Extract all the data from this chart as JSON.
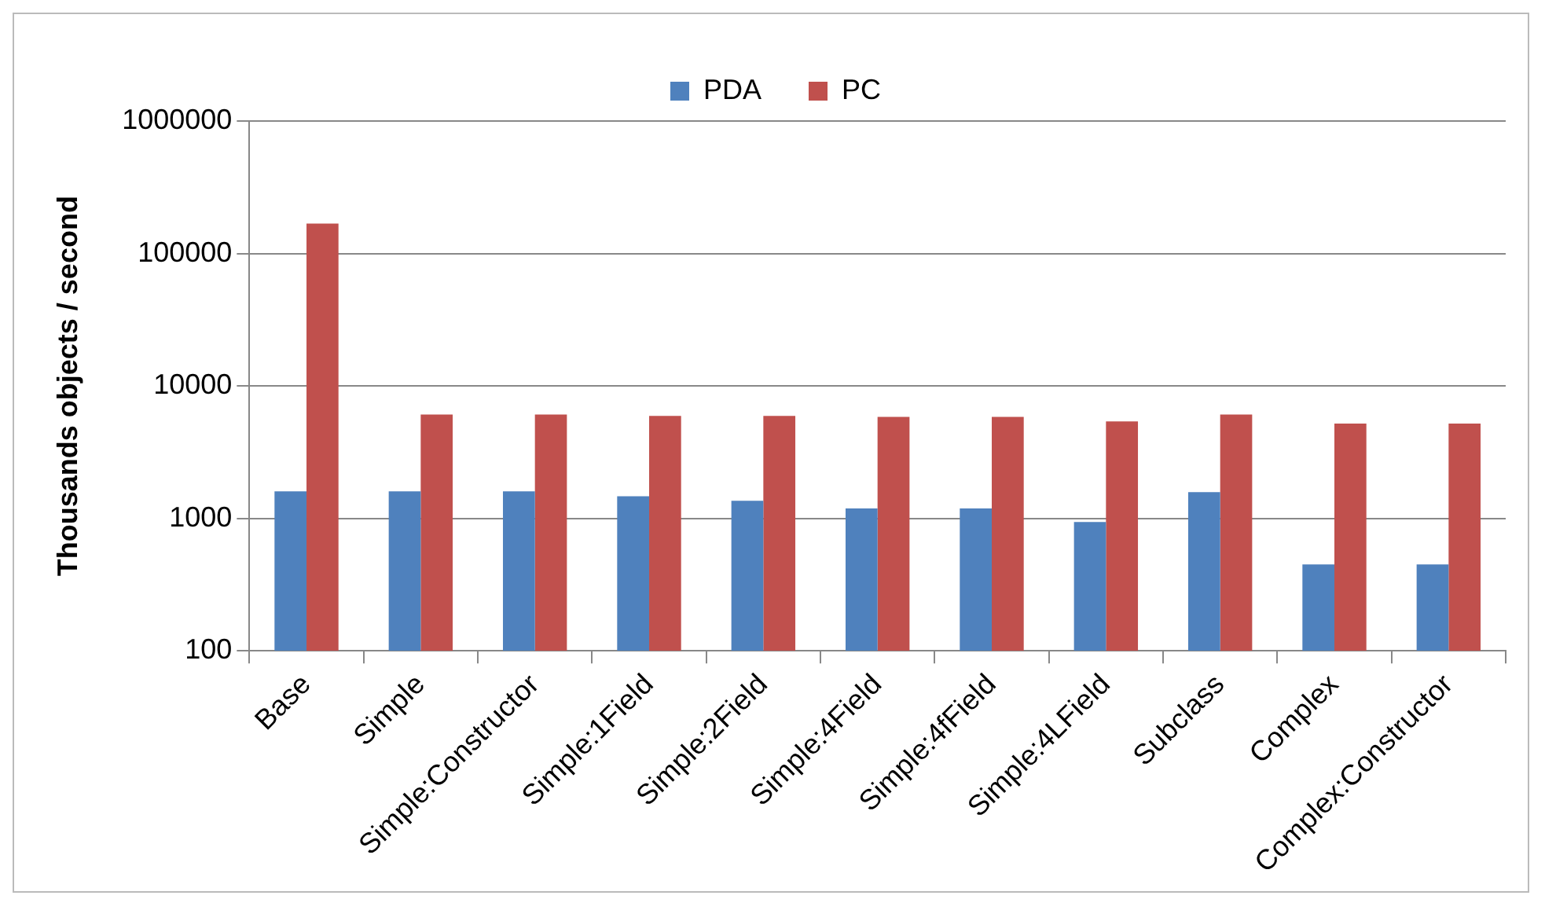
{
  "chart_data": {
    "type": "bar",
    "ylabel": "Thousands objects / second",
    "categories": [
      "Base",
      "Simple",
      "Simple:Constructor",
      "Simple:1Field",
      "Simple:2Field",
      "Simple:4Field",
      "Simple:4fField",
      "Simple:4LField",
      "Subclass",
      "Complex",
      "Complex:Constructor"
    ],
    "series": [
      {
        "name": "PDA",
        "color": "#4f81bd",
        "values": [
          1600,
          1600,
          1600,
          1470,
          1360,
          1190,
          1190,
          940,
          1580,
          450,
          450
        ]
      },
      {
        "name": "PC",
        "color": "#c0504d",
        "values": [
          168000,
          6100,
          6100,
          5950,
          5950,
          5850,
          5850,
          5400,
          6100,
          5200,
          5200
        ]
      }
    ],
    "log": true,
    "ylim": [
      100,
      1000000
    ],
    "yticks": [
      100,
      1000,
      10000,
      100000,
      1000000
    ],
    "grid": "y",
    "legend": "top"
  }
}
